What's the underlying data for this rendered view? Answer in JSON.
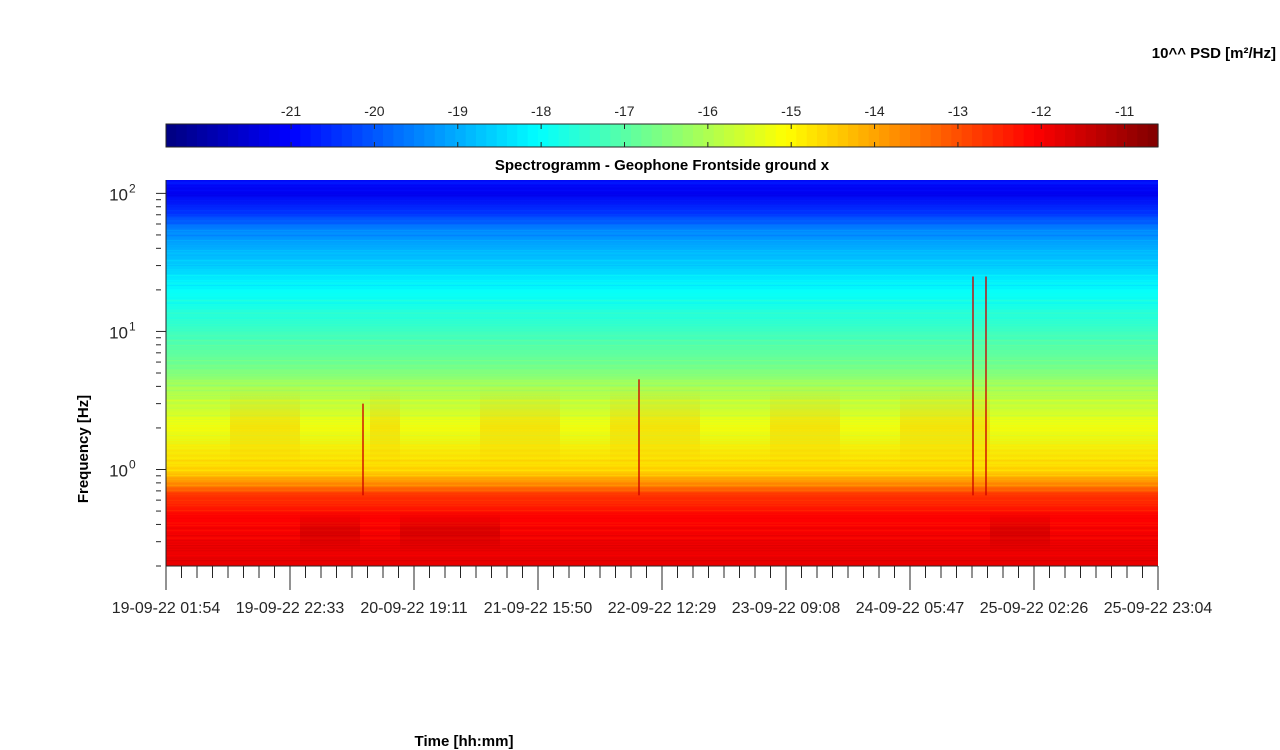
{
  "chart_data": {
    "type": "heatmap",
    "title": "Spectrogramm - Geophone Frontside ground x",
    "xlabel": "Time [hh:mm]",
    "ylabel": "Frequency [Hz]",
    "y_scale": "log",
    "ylim": [
      0.2,
      125
    ],
    "x_tick_labels": [
      "19-09-22  01:54",
      "19-09-22  22:33",
      "20-09-22  19:11",
      "21-09-22  15:50",
      "22-09-22  12:29",
      "23-09-22  09:08",
      "24-09-22  05:47",
      "25-09-22  02:26",
      "25-09-22  23:04"
    ],
    "y_ticks": [
      {
        "base": "10",
        "exp": "0",
        "value": 1
      },
      {
        "base": "10",
        "exp": "1",
        "value": 10
      },
      {
        "base": "10",
        "exp": "2",
        "value": 100
      }
    ],
    "colorbar": {
      "label": "10^^ PSD [m²/Hz]",
      "colormap": "jet",
      "range": [
        -22.5,
        -10.6
      ],
      "ticks": [
        "-21",
        "-20",
        "-19",
        "-18",
        "-17",
        "-16",
        "-15",
        "-14",
        "-13",
        "-12",
        "-11"
      ],
      "tick_values": [
        -21,
        -20,
        -19,
        -18,
        -17,
        -16,
        -15,
        -14,
        -13,
        -12,
        -11
      ]
    },
    "psd_profile": [
      {
        "freq_hz": 0.2,
        "log10_psd": -11.8
      },
      {
        "freq_hz": 0.45,
        "log10_psd": -12.1
      },
      {
        "freq_hz": 0.65,
        "log10_psd": -12.7
      },
      {
        "freq_hz": 0.8,
        "log10_psd": -13.8
      },
      {
        "freq_hz": 1.0,
        "log10_psd": -14.6
      },
      {
        "freq_hz": 2.0,
        "log10_psd": -15.3
      },
      {
        "freq_hz": 3.5,
        "log10_psd": -15.9
      },
      {
        "freq_hz": 6.0,
        "log10_psd": -16.8
      },
      {
        "freq_hz": 10,
        "log10_psd": -17.3
      },
      {
        "freq_hz": 20,
        "log10_psd": -18.0
      },
      {
        "freq_hz": 35,
        "log10_psd": -18.8
      },
      {
        "freq_hz": 55,
        "log10_psd": -19.5
      },
      {
        "freq_hz": 75,
        "log10_psd": -20.5
      },
      {
        "freq_hz": 100,
        "log10_psd": -21.2
      },
      {
        "freq_hz": 125,
        "log10_psd": -20.8
      }
    ]
  }
}
